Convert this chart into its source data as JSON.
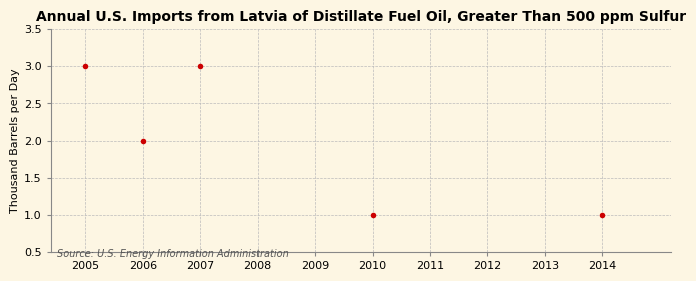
{
  "title": "Annual U.S. Imports from Latvia of Distillate Fuel Oil, Greater Than 500 ppm Sulfur",
  "ylabel": "Thousand Barrels per Day",
  "source": "Source: U.S. Energy Information Administration",
  "background_color": "#fdf6e3",
  "plot_bg_color": "#fdf6e3",
  "data_x": [
    2005,
    2006,
    2007,
    2010,
    2014
  ],
  "data_y": [
    3.0,
    2.0,
    3.0,
    1.0,
    1.0
  ],
  "marker_color": "#cc0000",
  "marker_size": 4,
  "xlim": [
    2004.4,
    2015.2
  ],
  "ylim": [
    0.5,
    3.5
  ],
  "xticks": [
    2005,
    2006,
    2007,
    2008,
    2009,
    2010,
    2011,
    2012,
    2013,
    2014
  ],
  "yticks": [
    0.5,
    1.0,
    1.5,
    2.0,
    2.5,
    3.0,
    3.5
  ],
  "grid_color": "#bbbbbb",
  "title_fontsize": 10,
  "axis_fontsize": 8,
  "tick_fontsize": 8,
  "source_fontsize": 7
}
